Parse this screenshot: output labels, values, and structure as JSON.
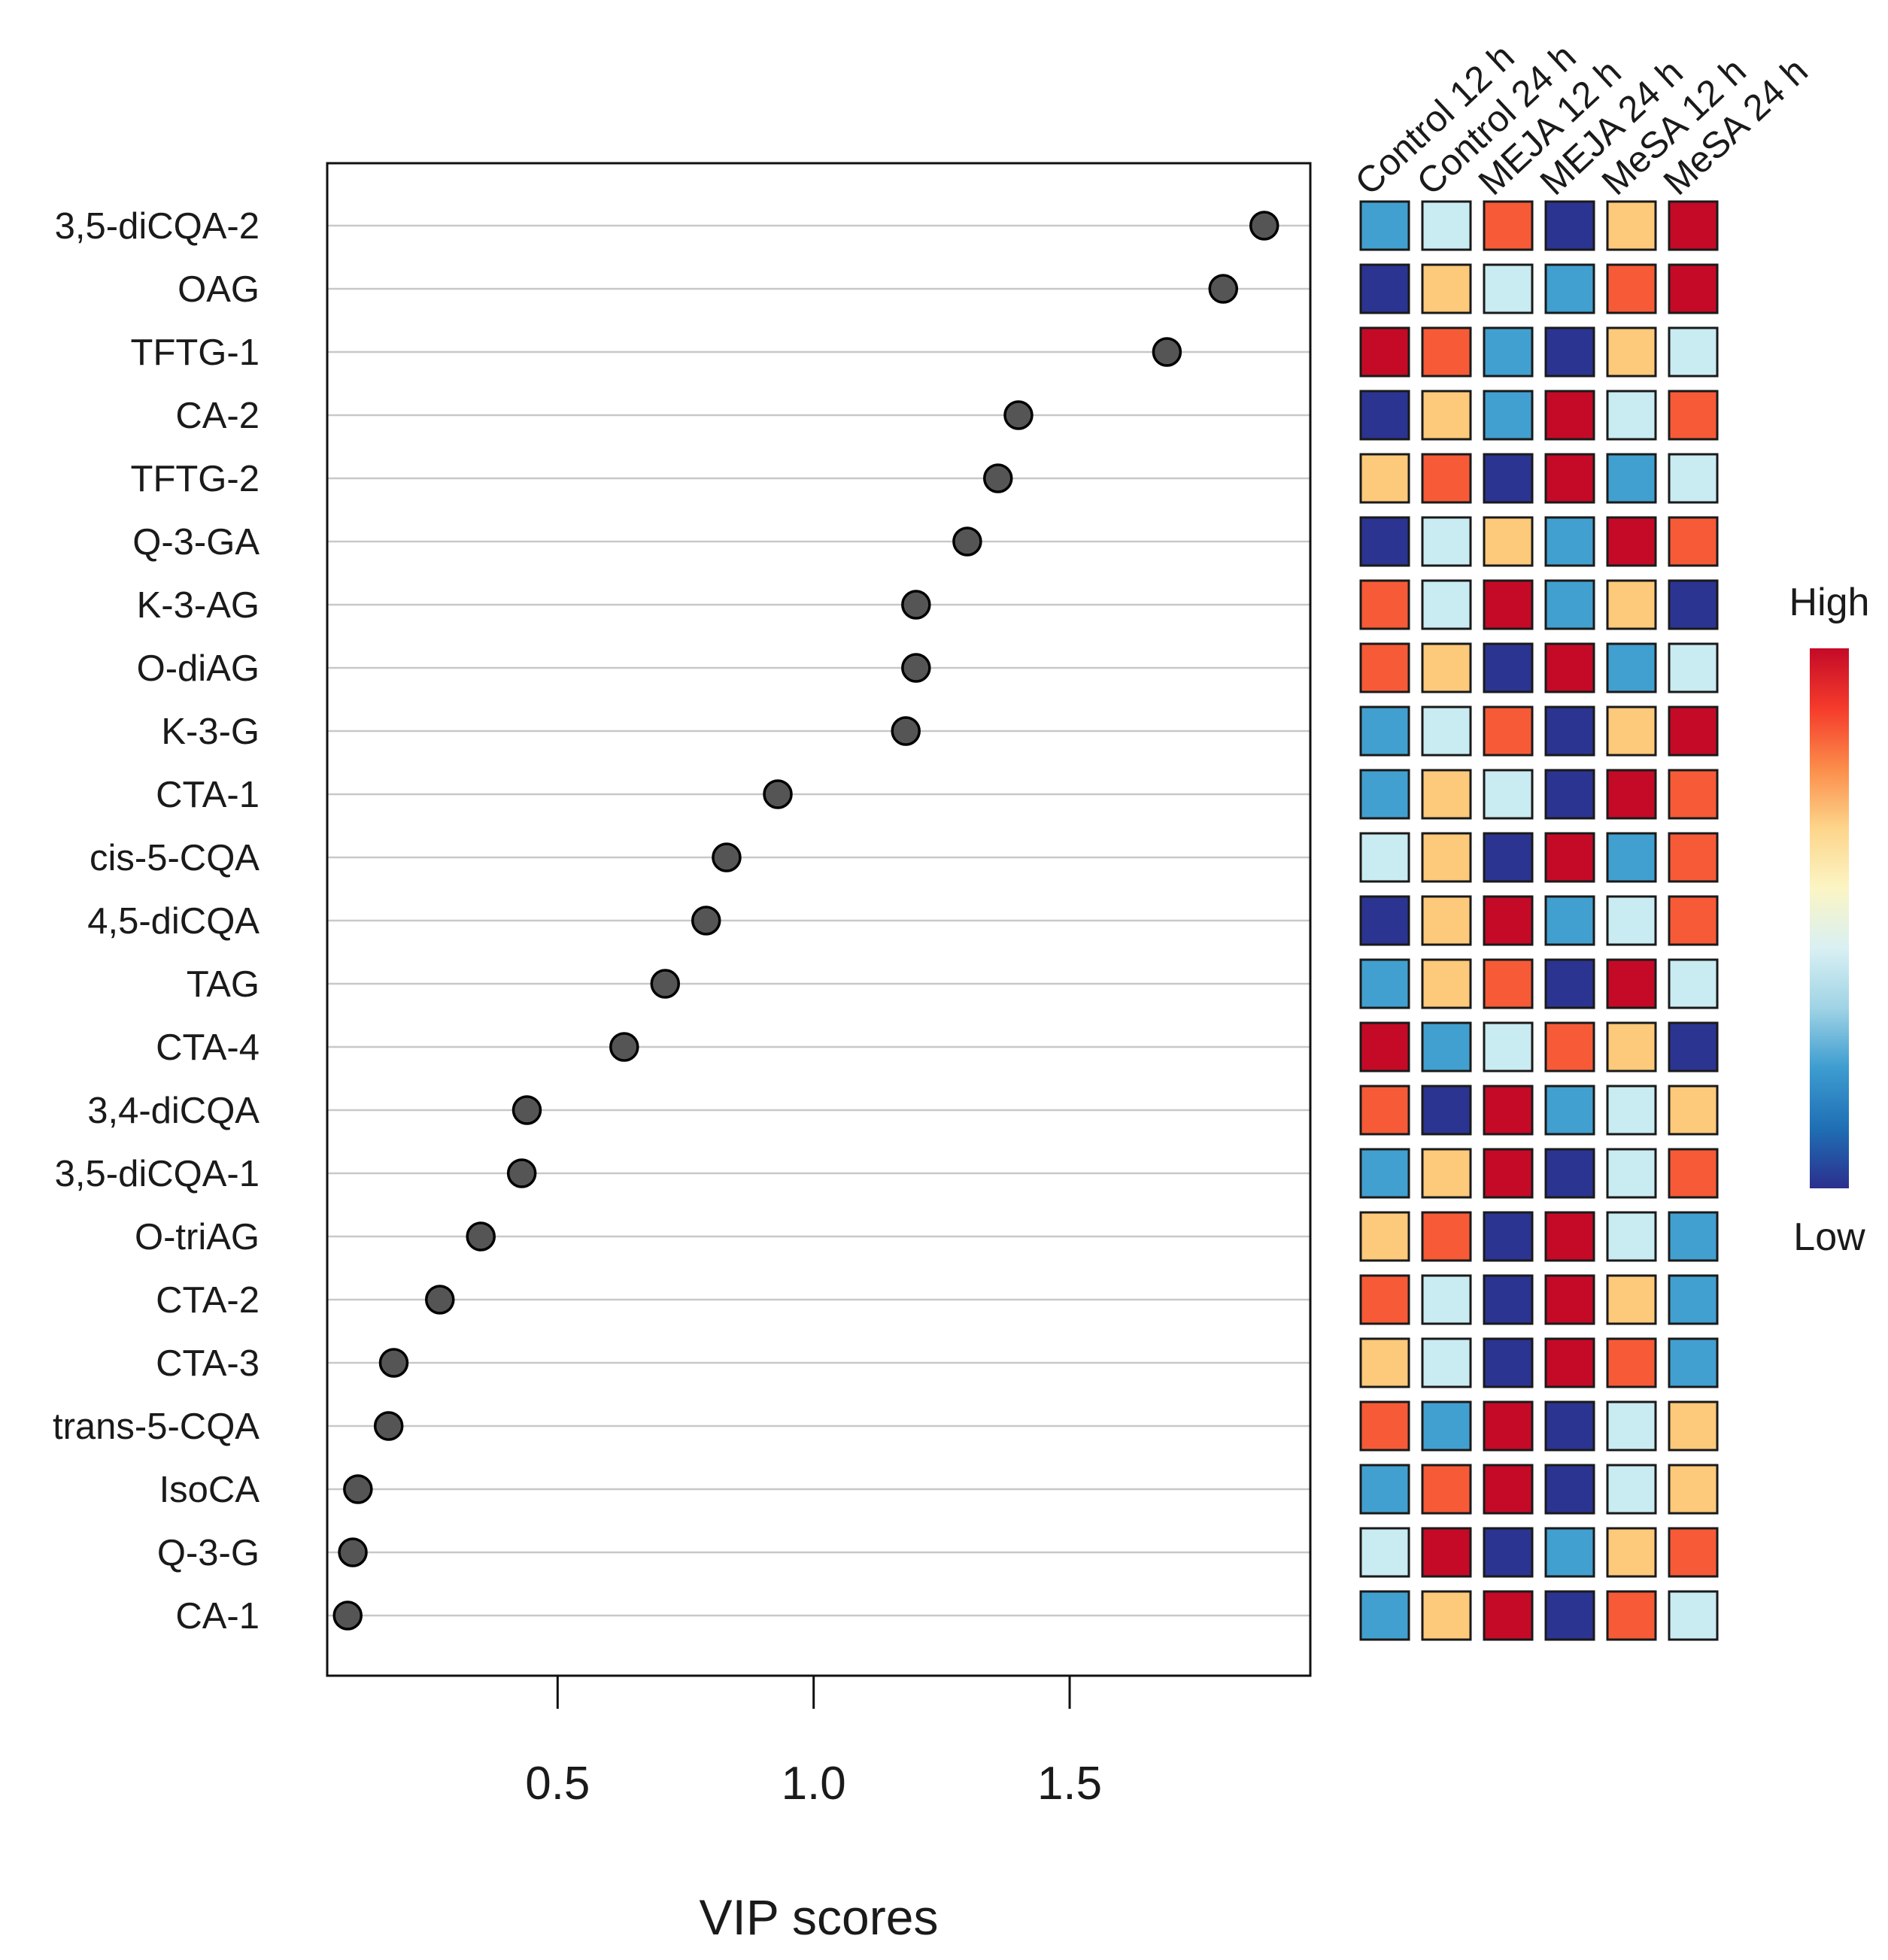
{
  "chart_data": [
    {
      "type": "scatter",
      "subtype": "dot-plot",
      "title": "",
      "xlabel": "VIP scores",
      "ylabel": "",
      "xlim": [
        0.05,
        1.97
      ],
      "xticks": [
        0.5,
        1.0,
        1.5
      ],
      "xtick_labels": [
        "0.5",
        "1.0",
        "1.5"
      ],
      "grid": "horizontal",
      "marker_color": "#555555",
      "marker_edge_color": "#000000",
      "gridline_color": "#c8c8c8",
      "categories": [
        "3,5-diCQA-2",
        "OAG",
        "TFTG-1",
        "CA-2",
        "TFTG-2",
        "Q-3-GA",
        "K-3-AG",
        "O-diAG",
        "K-3-G",
        "CTA-1",
        "cis-5-CQA",
        "4,5-diCQA",
        "TAG",
        "CTA-4",
        "3,4-diCQA",
        "3,5-diCQA-1",
        "O-triAG",
        "CTA-2",
        "CTA-3",
        "trans-5-CQA",
        "IsoCA",
        "Q-3-G",
        "CA-1"
      ],
      "values": [
        1.88,
        1.8,
        1.69,
        1.4,
        1.36,
        1.3,
        1.2,
        1.2,
        1.18,
        0.93,
        0.83,
        0.79,
        0.71,
        0.63,
        0.44,
        0.43,
        0.35,
        0.27,
        0.18,
        0.17,
        0.11,
        0.1,
        0.09
      ]
    },
    {
      "type": "heatmap",
      "title": "",
      "columns": [
        "Control 12 h",
        "Control 24 h",
        "MEJA 12 h",
        "MEJA 24 h",
        "MeSA 12 h",
        "MeSA 24 h"
      ],
      "rows": [
        "3,5-diCQA-2",
        "OAG",
        "TFTG-1",
        "CA-2",
        "TFTG-2",
        "Q-3-GA",
        "K-3-AG",
        "O-diAG",
        "K-3-G",
        "CTA-1",
        "cis-5-CQA",
        "4,5-diCQA",
        "TAG",
        "CTA-4",
        "3,4-diCQA",
        "3,5-diCQA-1",
        "O-triAG",
        "CTA-2",
        "CTA-3",
        "trans-5-CQA",
        "IsoCA",
        "Q-3-G",
        "CA-1"
      ],
      "level_scale": "1 = lowest (dark blue) to 6 = highest (dark red)",
      "palette": [
        "#2b3491",
        "#41a0cf",
        "#c9ebf2",
        "#fdc97a",
        "#f75a37",
        "#c40a27"
      ],
      "cell_border_color": "#1a1a1a",
      "values": [
        [
          2,
          3,
          5,
          1,
          4,
          6
        ],
        [
          1,
          4,
          3,
          2,
          5,
          6
        ],
        [
          6,
          5,
          2,
          1,
          4,
          3
        ],
        [
          1,
          4,
          2,
          6,
          3,
          5
        ],
        [
          4,
          5,
          1,
          6,
          2,
          3
        ],
        [
          1,
          3,
          4,
          2,
          6,
          5
        ],
        [
          5,
          3,
          6,
          2,
          4,
          1
        ],
        [
          5,
          4,
          1,
          6,
          2,
          3
        ],
        [
          2,
          3,
          5,
          1,
          4,
          6
        ],
        [
          2,
          4,
          3,
          1,
          6,
          5
        ],
        [
          3,
          4,
          1,
          6,
          2,
          5
        ],
        [
          1,
          4,
          6,
          2,
          3,
          5
        ],
        [
          2,
          4,
          5,
          1,
          6,
          3
        ],
        [
          6,
          2,
          3,
          5,
          4,
          1
        ],
        [
          5,
          1,
          6,
          2,
          3,
          4
        ],
        [
          2,
          4,
          6,
          1,
          3,
          5
        ],
        [
          4,
          5,
          1,
          6,
          3,
          2
        ],
        [
          5,
          3,
          1,
          6,
          4,
          2
        ],
        [
          4,
          3,
          1,
          6,
          5,
          2
        ],
        [
          5,
          2,
          6,
          1,
          3,
          4
        ],
        [
          2,
          5,
          6,
          1,
          3,
          4
        ],
        [
          3,
          6,
          1,
          2,
          4,
          5
        ],
        [
          2,
          4,
          6,
          1,
          5,
          3
        ]
      ],
      "legend": {
        "high_label": "High",
        "low_label": "Low",
        "placement": "right",
        "gradient_colors": [
          "#c40a27",
          "#f53b2b",
          "#fb8c4a",
          "#fdd58b",
          "#fbf5c4",
          "#d9f0f3",
          "#9fd3e5",
          "#3d9cd0",
          "#1f6fb4",
          "#2b2f8e"
        ]
      }
    }
  ]
}
